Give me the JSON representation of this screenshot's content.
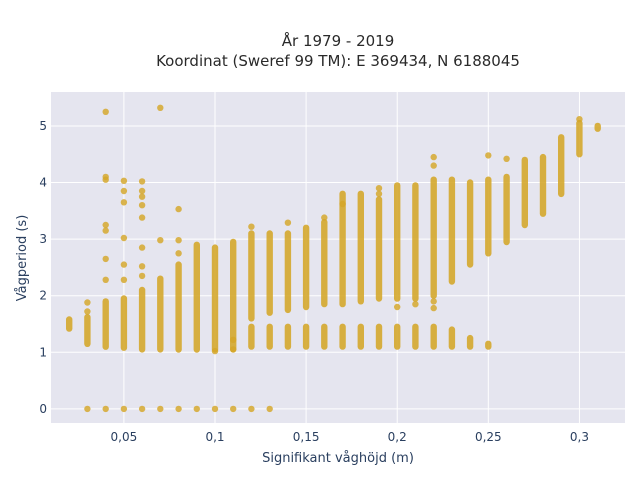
{
  "chart_data": {
    "type": "scatter",
    "title_line1": "År 1979 - 2019",
    "title_line2": "Koordinat (Sweref 99 TM): E 369434, N 6188045",
    "xlabel": "Signifikant våghöjd (m)",
    "ylabel": "Vågperiod (s)",
    "xlim": [
      0.01,
      0.325
    ],
    "ylim": [
      -0.25,
      5.6
    ],
    "x_ticks": [
      {
        "value": 0.05,
        "label": "0,05"
      },
      {
        "value": 0.1,
        "label": "0,1"
      },
      {
        "value": 0.15,
        "label": "0,15"
      },
      {
        "value": 0.2,
        "label": "0,2"
      },
      {
        "value": 0.25,
        "label": "0,25"
      },
      {
        "value": 0.3,
        "label": "0,3"
      }
    ],
    "y_ticks": [
      {
        "value": 0,
        "label": "0"
      },
      {
        "value": 1,
        "label": "1"
      },
      {
        "value": 2,
        "label": "2"
      },
      {
        "value": 3,
        "label": "3"
      },
      {
        "value": 4,
        "label": "4"
      },
      {
        "value": 5,
        "label": "5"
      }
    ],
    "grid": true,
    "colors": {
      "marker": "#d4a628",
      "plot_bg": "#e5e5ef",
      "grid": "#ffffff",
      "text": "#2a3f5f"
    },
    "columns": [
      {
        "x": 0.02,
        "y_min": 1.42,
        "y_max": 1.58
      },
      {
        "x": 0.03,
        "y_min": 1.15,
        "y_max": 1.62
      },
      {
        "x": 0.04,
        "y_min": 1.1,
        "y_max": 1.9
      },
      {
        "x": 0.05,
        "y_min": 1.08,
        "y_max": 1.95
      },
      {
        "x": 0.06,
        "y_min": 1.05,
        "y_max": 2.1
      },
      {
        "x": 0.07,
        "y_min": 1.05,
        "y_max": 2.3
      },
      {
        "x": 0.08,
        "y_min": 1.05,
        "y_max": 2.55
      },
      {
        "x": 0.09,
        "y_min": 1.05,
        "y_max": 2.9
      },
      {
        "x": 0.1,
        "y_min": 1.05,
        "y_max": 2.85
      },
      {
        "x": 0.11,
        "y_min": 1.05,
        "y_max": 2.95
      },
      {
        "x": 0.12,
        "y_min": 1.6,
        "y_max": 3.1
      },
      {
        "x": 0.13,
        "y_min": 1.7,
        "y_max": 3.1
      },
      {
        "x": 0.14,
        "y_min": 1.75,
        "y_max": 3.1
      },
      {
        "x": 0.15,
        "y_min": 1.8,
        "y_max": 3.2
      },
      {
        "x": 0.16,
        "y_min": 1.85,
        "y_max": 3.3
      },
      {
        "x": 0.17,
        "y_min": 1.85,
        "y_max": 3.8
      },
      {
        "x": 0.18,
        "y_min": 1.9,
        "y_max": 3.8
      },
      {
        "x": 0.19,
        "y_min": 1.95,
        "y_max": 3.7
      },
      {
        "x": 0.2,
        "y_min": 1.95,
        "y_max": 3.95
      },
      {
        "x": 0.21,
        "y_min": 1.95,
        "y_max": 3.95
      },
      {
        "x": 0.22,
        "y_min": 2.0,
        "y_max": 4.05
      },
      {
        "x": 0.23,
        "y_min": 2.25,
        "y_max": 4.05
      },
      {
        "x": 0.24,
        "y_min": 2.55,
        "y_max": 4.0
      },
      {
        "x": 0.25,
        "y_min": 2.75,
        "y_max": 4.05
      },
      {
        "x": 0.26,
        "y_min": 2.95,
        "y_max": 4.1
      },
      {
        "x": 0.27,
        "y_min": 3.25,
        "y_max": 4.4
      },
      {
        "x": 0.28,
        "y_min": 3.45,
        "y_max": 4.45
      },
      {
        "x": 0.29,
        "y_min": 3.8,
        "y_max": 4.8
      },
      {
        "x": 0.3,
        "y_min": 4.5,
        "y_max": 5.05
      },
      {
        "x": 0.31,
        "y_min": 4.95,
        "y_max": 5.0
      }
    ],
    "low_band": [
      {
        "x": 0.12,
        "y_min": 1.1,
        "y_max": 1.45
      },
      {
        "x": 0.13,
        "y_min": 1.1,
        "y_max": 1.45
      },
      {
        "x": 0.14,
        "y_min": 1.1,
        "y_max": 1.45
      },
      {
        "x": 0.15,
        "y_min": 1.1,
        "y_max": 1.45
      },
      {
        "x": 0.16,
        "y_min": 1.1,
        "y_max": 1.45
      },
      {
        "x": 0.17,
        "y_min": 1.1,
        "y_max": 1.45
      },
      {
        "x": 0.18,
        "y_min": 1.1,
        "y_max": 1.45
      },
      {
        "x": 0.19,
        "y_min": 1.1,
        "y_max": 1.45
      },
      {
        "x": 0.2,
        "y_min": 1.1,
        "y_max": 1.45
      },
      {
        "x": 0.21,
        "y_min": 1.1,
        "y_max": 1.45
      },
      {
        "x": 0.22,
        "y_min": 1.1,
        "y_max": 1.45
      },
      {
        "x": 0.23,
        "y_min": 1.1,
        "y_max": 1.4
      },
      {
        "x": 0.24,
        "y_min": 1.1,
        "y_max": 1.25
      },
      {
        "x": 0.25,
        "y_min": 1.1,
        "y_max": 1.15
      }
    ],
    "zero_points": [
      0.03,
      0.04,
      0.05,
      0.06,
      0.07,
      0.08,
      0.09,
      0.1,
      0.11,
      0.12,
      0.13
    ],
    "outliers": [
      {
        "x": 0.04,
        "y": 5.25
      },
      {
        "x": 0.07,
        "y": 5.32
      },
      {
        "x": 0.04,
        "y": 4.1
      },
      {
        "x": 0.04,
        "y": 4.05
      },
      {
        "x": 0.05,
        "y": 4.03
      },
      {
        "x": 0.05,
        "y": 3.85
      },
      {
        "x": 0.06,
        "y": 4.02
      },
      {
        "x": 0.06,
        "y": 3.85
      },
      {
        "x": 0.06,
        "y": 3.75
      },
      {
        "x": 0.06,
        "y": 3.6
      },
      {
        "x": 0.06,
        "y": 3.38
      },
      {
        "x": 0.05,
        "y": 3.65
      },
      {
        "x": 0.04,
        "y": 3.25
      },
      {
        "x": 0.04,
        "y": 3.15
      },
      {
        "x": 0.08,
        "y": 3.53
      },
      {
        "x": 0.05,
        "y": 3.02
      },
      {
        "x": 0.07,
        "y": 2.98
      },
      {
        "x": 0.08,
        "y": 2.98
      },
      {
        "x": 0.06,
        "y": 2.85
      },
      {
        "x": 0.04,
        "y": 2.65
      },
      {
        "x": 0.05,
        "y": 2.55
      },
      {
        "x": 0.06,
        "y": 2.52
      },
      {
        "x": 0.08,
        "y": 2.75
      },
      {
        "x": 0.06,
        "y": 2.35
      },
      {
        "x": 0.04,
        "y": 2.28
      },
      {
        "x": 0.05,
        "y": 2.28
      },
      {
        "x": 0.03,
        "y": 1.88
      },
      {
        "x": 0.03,
        "y": 1.72
      },
      {
        "x": 0.12,
        "y": 3.22
      },
      {
        "x": 0.14,
        "y": 3.29
      },
      {
        "x": 0.16,
        "y": 3.38
      },
      {
        "x": 0.17,
        "y": 3.62
      },
      {
        "x": 0.19,
        "y": 3.9
      },
      {
        "x": 0.19,
        "y": 3.8
      },
      {
        "x": 0.22,
        "y": 4.45
      },
      {
        "x": 0.22,
        "y": 4.3
      },
      {
        "x": 0.25,
        "y": 4.48
      },
      {
        "x": 0.26,
        "y": 4.42
      },
      {
        "x": 0.3,
        "y": 5.12
      },
      {
        "x": 0.2,
        "y": 1.8
      },
      {
        "x": 0.21,
        "y": 1.85
      },
      {
        "x": 0.22,
        "y": 1.9
      },
      {
        "x": 0.22,
        "y": 1.78
      },
      {
        "x": 0.11,
        "y": 1.22
      },
      {
        "x": 0.11,
        "y": 1.05
      },
      {
        "x": 0.1,
        "y": 1.02
      }
    ]
  }
}
